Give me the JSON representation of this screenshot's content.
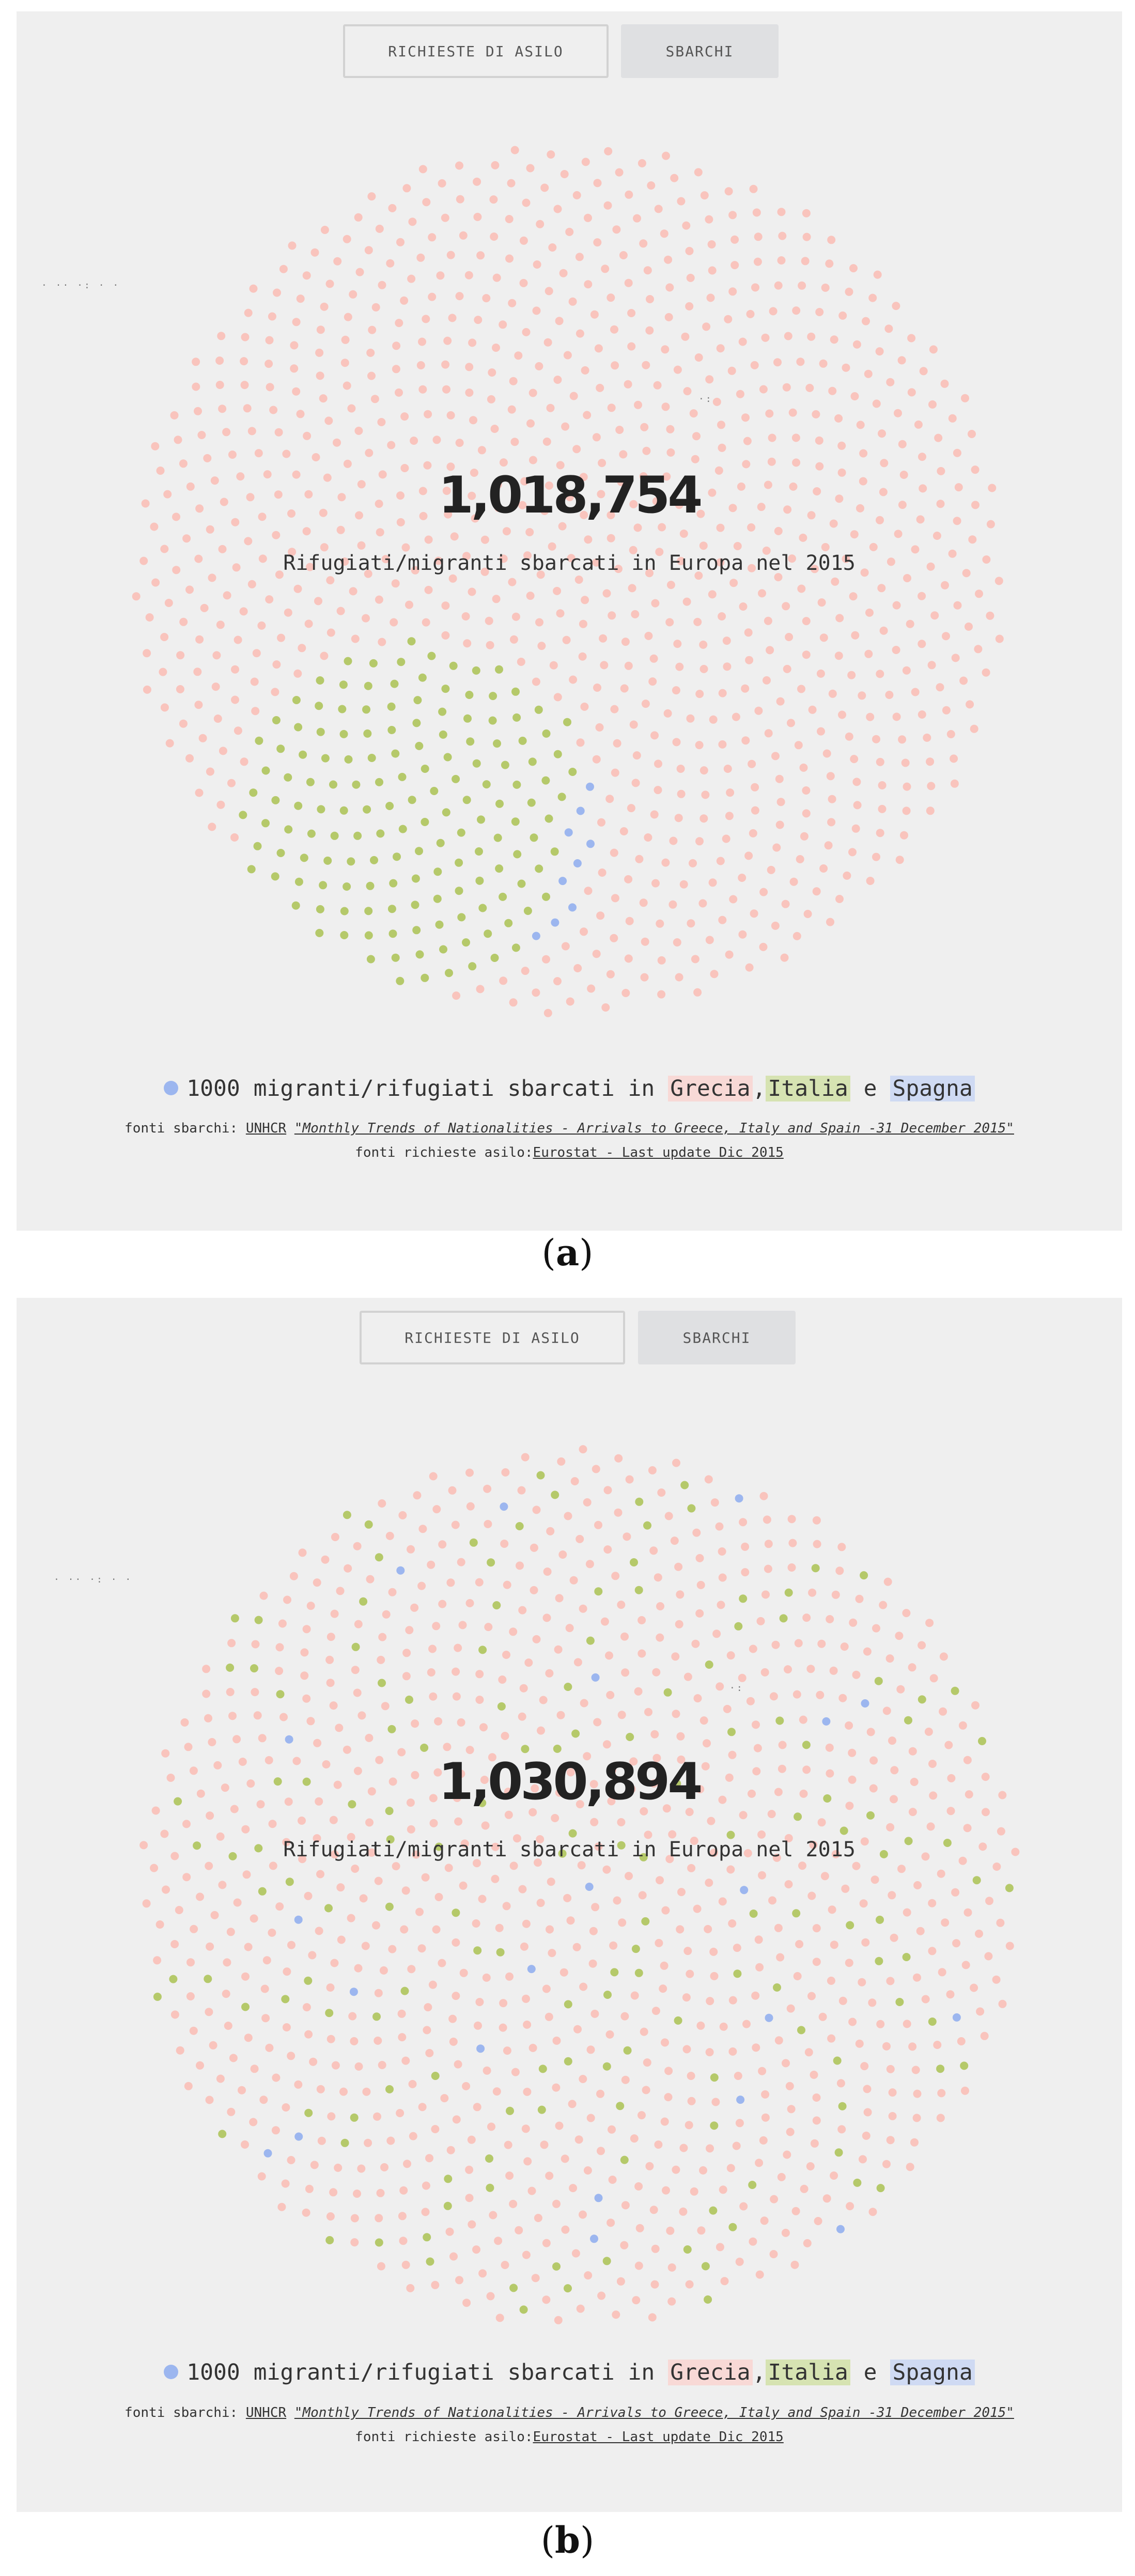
{
  "colors": {
    "grecia": "#f9c4bd",
    "italia": "#b5c96a",
    "spagna": "#9cb6ef",
    "grecia_hl": "#f8d9d6",
    "italia_hl": "#d6e3b2",
    "spagna_hl": "#cfdaf3"
  },
  "panels": [
    {
      "tabs": {
        "asylum_label": "RICHIESTE DI ASILO",
        "landings_label": "SBARCHI"
      },
      "total": "1,018,754",
      "subtitle": "Rifugiati/migranti sbarcati in Europa nel 2015",
      "legend": {
        "prefix": "1000 migranti/rifugiati sbarcati in ",
        "grecia": "Grecia",
        "comma": ",",
        "italia": "Italia",
        "and": " e ",
        "spagna": "Spagna"
      },
      "sources": {
        "landings_prefix": "fonti sbarchi: ",
        "unhcr": "UNHCR",
        "report": "\"Monthly Trends of Nationalities - Arrivals to Greece, Italy and Spain -31 December 2015\"",
        "asylum_prefix": "fonti richieste asilo:",
        "eurostat": "Eurostat - Last update Dic 2015"
      },
      "caption_label": "a",
      "layout_mode": "clustered",
      "dot_counts": {
        "grecia": 856,
        "italia": 154,
        "spagna": 9
      }
    },
    {
      "tabs": {
        "asylum_label": "RICHIESTE DI ASILO",
        "landings_label": "SBARCHI"
      },
      "total": "1,030,894",
      "subtitle": "Rifugiati/migranti sbarcati in Europa nel 2015",
      "legend": {
        "prefix": "1000 migranti/rifugiati sbarcati in ",
        "grecia": "Grecia",
        "comma": ",",
        "italia": "Italia",
        "and": " e ",
        "spagna": "Spagna"
      },
      "sources": {
        "landings_prefix": "fonti sbarchi: ",
        "unhcr": "UNHCR",
        "report": "\"Monthly Trends of Nationalities - Arrivals to Greece, Italy and Spain -31 December 2015\"",
        "asylum_prefix": "fonti richieste asilo:",
        "eurostat": "Eurostat - Last update Dic 2015"
      },
      "caption_label": "b",
      "layout_mode": "scattered",
      "dot_counts": {
        "grecia": 856,
        "italia": 154,
        "spagna": 21
      }
    }
  ]
}
